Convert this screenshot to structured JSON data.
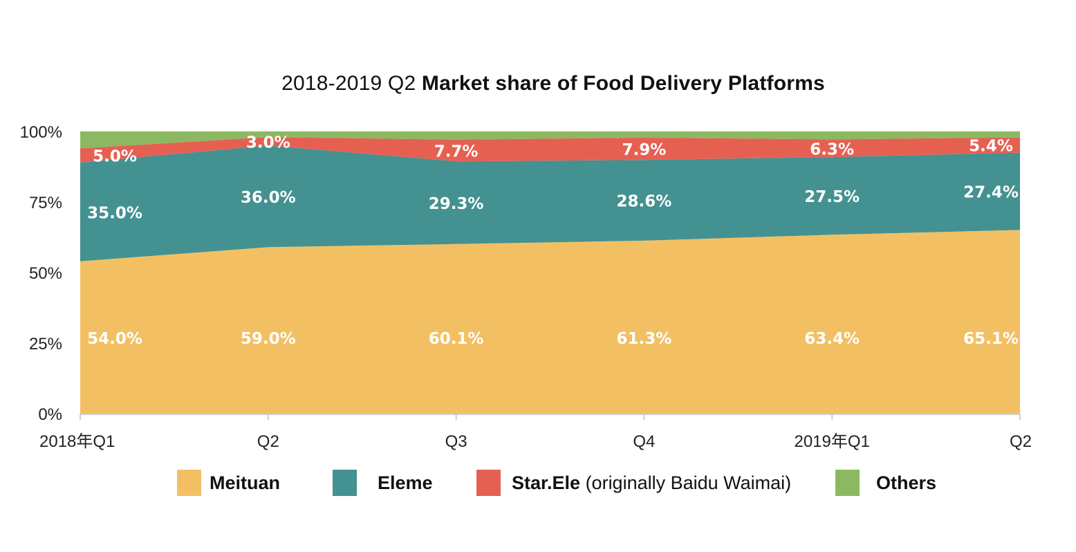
{
  "title": {
    "plain": "2018-2019 Q2",
    "bold": "Market share of Food Delivery Platforms"
  },
  "chart_data": {
    "type": "area",
    "stacked": true,
    "categories": [
      "2018年Q1",
      "Q2",
      "Q3",
      "Q4",
      "2019年Q1",
      "Q2"
    ],
    "ylim": [
      0,
      100
    ],
    "yticks": [
      "0%",
      "25%",
      "50%",
      "75%",
      "100%"
    ],
    "grid": false,
    "legend_position": "bottom",
    "series": [
      {
        "name": "Meituan",
        "color": "#F2C063",
        "values": [
          54.0,
          59.0,
          60.1,
          61.3,
          63.4,
          65.1
        ],
        "labels": [
          "54.0%",
          "59.0%",
          "60.1%",
          "61.3%",
          "63.4%",
          "65.1%"
        ]
      },
      {
        "name": "Eleme",
        "color": "#449191",
        "values": [
          35.0,
          36.0,
          29.3,
          28.6,
          27.5,
          27.4
        ],
        "labels": [
          "35.0%",
          "36.0%",
          "29.3%",
          "28.6%",
          "27.5%",
          "27.4%"
        ]
      },
      {
        "name": "Star.Ele",
        "color": "#E66052",
        "values": [
          5.0,
          3.0,
          7.7,
          7.9,
          6.3,
          5.4
        ],
        "labels": [
          "5.0%",
          "3.0%",
          "7.7%",
          "7.9%",
          "6.3%",
          "5.4%"
        ]
      },
      {
        "name": "Others",
        "color": "#8DB862",
        "values": [
          6.0,
          2.0,
          2.9,
          2.2,
          2.8,
          2.1
        ],
        "labels": []
      }
    ]
  },
  "legend": [
    {
      "label": "Meituan",
      "suffix": "",
      "color": "#F2C063"
    },
    {
      "label": "Eleme",
      "suffix": "",
      "color": "#449191"
    },
    {
      "label": "Star.Ele",
      "suffix": " (originally Baidu Waimai)",
      "color": "#E66052"
    },
    {
      "label": "Others",
      "suffix": "",
      "color": "#8DB862"
    }
  ]
}
